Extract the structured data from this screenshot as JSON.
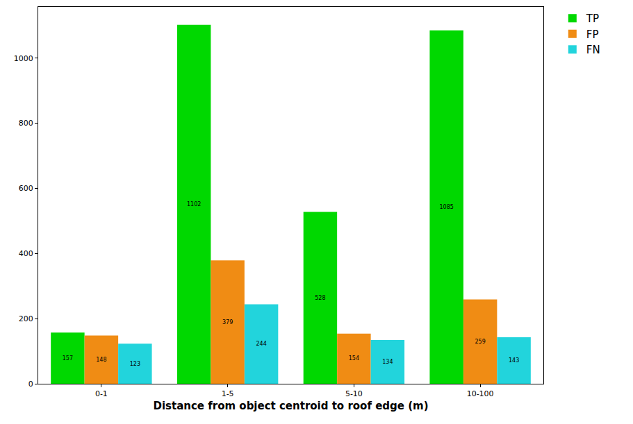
{
  "chart_data": {
    "type": "bar",
    "x_label": "Distance from object centroid to roof edge (m)",
    "categories": [
      "0-1",
      "1-5",
      "5-10",
      "10-100"
    ],
    "series": [
      {
        "name": "TP",
        "color": "#00d800",
        "values": [
          157,
          1102,
          528,
          1085
        ]
      },
      {
        "name": "FP",
        "color": "#f08c14",
        "values": [
          148,
          379,
          154,
          259
        ]
      },
      {
        "name": "FN",
        "color": "#22d4dc",
        "values": [
          123,
          244,
          134,
          143
        ]
      }
    ],
    "ylim": [
      0,
      1157
    ],
    "yticks": [
      0,
      200,
      400,
      600,
      800,
      1000
    ],
    "grid": false,
    "legend": "upper right",
    "data_labels": true
  }
}
